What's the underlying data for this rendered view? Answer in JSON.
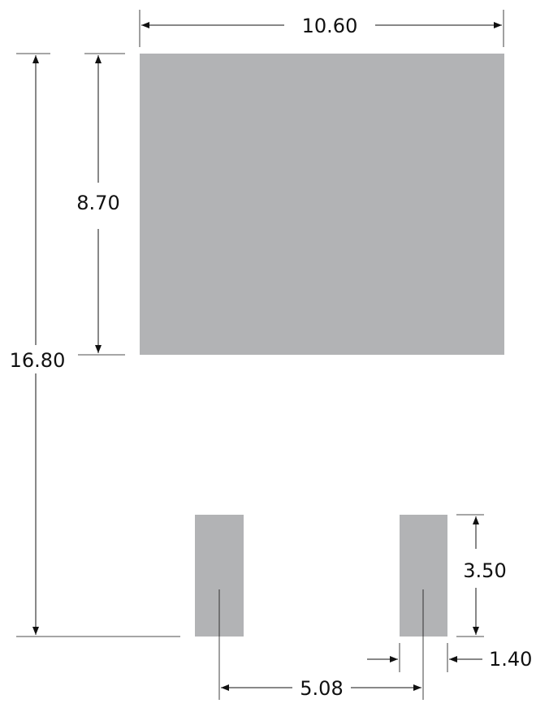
{
  "colors": {
    "pad_fill": "#b2b3b5",
    "line": "#111111",
    "background": "#ffffff"
  },
  "dimensions": {
    "large_pad_width": "10.60",
    "large_pad_height": "8.70",
    "overall_height": "16.80",
    "small_pad_height": "3.50",
    "small_pad_width": "1.40",
    "pad_pitch": "5.08"
  }
}
